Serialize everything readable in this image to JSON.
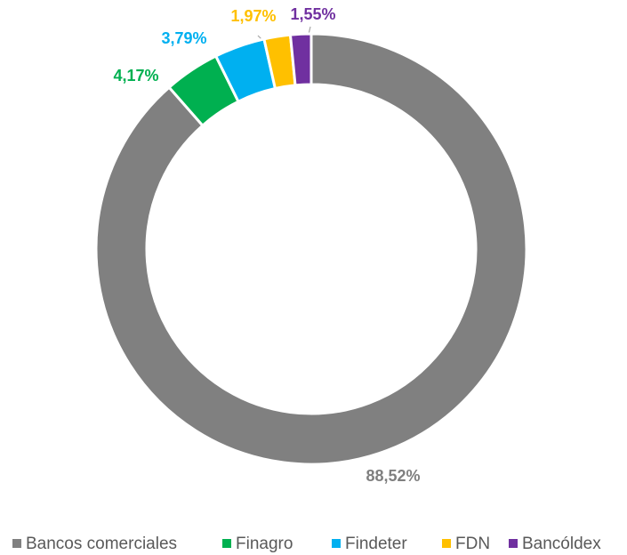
{
  "chart_data": {
    "type": "donut",
    "categories": [
      "Bancos comerciales",
      "Finagro",
      "Findeter",
      "FDN",
      "Bancóldex"
    ],
    "values": [
      88.52,
      4.17,
      3.79,
      1.97,
      1.55
    ],
    "value_labels": [
      "88,52%",
      "4,17%",
      "3,79%",
      "1,97%",
      "1,55%"
    ],
    "colors": [
      "#808080",
      "#00b050",
      "#00b0f0",
      "#ffc000",
      "#7030a0"
    ],
    "legend": "bottom"
  }
}
